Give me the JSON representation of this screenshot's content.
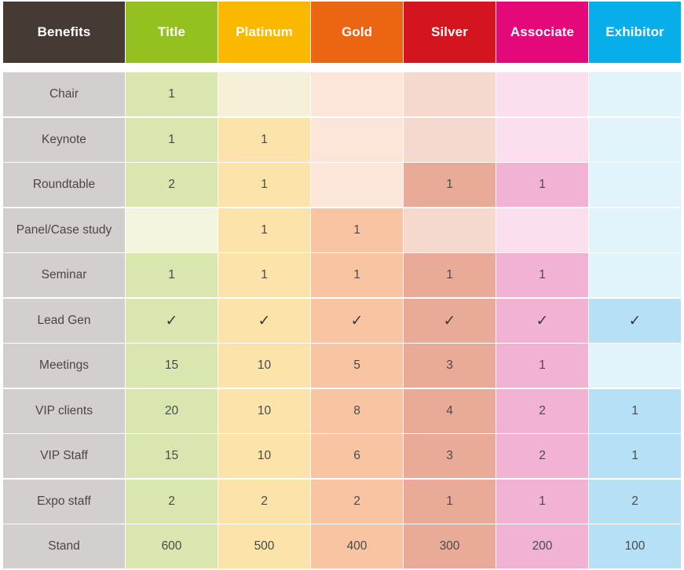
{
  "header": {
    "benefits": "Benefits",
    "tiers": [
      "Title",
      "Platinum",
      "Gold",
      "Silver",
      "Associate",
      "Exhibitor"
    ]
  },
  "rows": [
    {
      "label": "Chair",
      "values": [
        "1",
        "",
        "",
        "",
        "",
        ""
      ]
    },
    {
      "label": "Keynote",
      "values": [
        "1",
        "1",
        "",
        "",
        "",
        ""
      ]
    },
    {
      "label": "Roundtable",
      "values": [
        "2",
        "1",
        "",
        "1",
        "1",
        ""
      ]
    },
    {
      "label": "Panel/Case study",
      "values": [
        "",
        "1",
        "1",
        "",
        "",
        ""
      ]
    },
    {
      "label": "Seminar",
      "values": [
        "1",
        "1",
        "1",
        "1",
        "1",
        ""
      ]
    },
    {
      "label": "Lead Gen",
      "values": [
        "✓",
        "✓",
        "✓",
        "✓",
        "✓",
        "✓"
      ]
    },
    {
      "label": "Meetings",
      "values": [
        "15",
        "10",
        "5",
        "3",
        "1",
        ""
      ]
    },
    {
      "label": "VIP clients",
      "values": [
        "20",
        "10",
        "8",
        "4",
        "2",
        "1"
      ]
    },
    {
      "label": "VIP Staff",
      "values": [
        "15",
        "10",
        "6",
        "3",
        "2",
        "1"
      ]
    },
    {
      "label": "Expo staff",
      "values": [
        "2",
        "2",
        "2",
        "1",
        "1",
        "2"
      ]
    },
    {
      "label": "Stand",
      "values": [
        "600",
        "500",
        "400",
        "300",
        "200",
        "100"
      ]
    }
  ],
  "colors": {
    "benefits_header": "#463a35",
    "title": "#94c11f",
    "platinum": "#fbb800",
    "gold": "#ec6513",
    "silver": "#d4141e",
    "associate": "#e5087a",
    "exhibitor": "#07aee9",
    "label_column": "#d3cfcf"
  },
  "icons": {
    "included": "check-mark-icon"
  }
}
